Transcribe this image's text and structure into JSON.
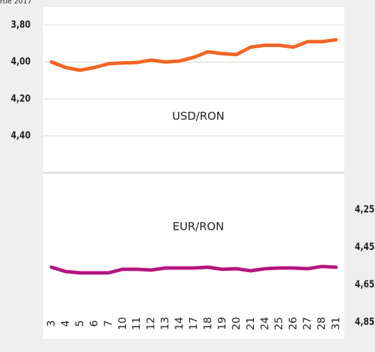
{
  "caption": "rtie 2017",
  "chart_data": [
    {
      "type": "line",
      "title": "USD/RON",
      "categories": [
        "3",
        "4",
        "5",
        "6",
        "7",
        "10",
        "11",
        "12",
        "13",
        "14",
        "17",
        "18",
        "19",
        "20",
        "21",
        "24",
        "25",
        "26",
        "27",
        "28",
        "31"
      ],
      "series": [
        {
          "name": "USD/RON",
          "color": "#f26522",
          "values": [
            4.0,
            4.03,
            4.045,
            4.03,
            4.01,
            4.005,
            4.003,
            3.99,
            4.0,
            3.995,
            3.975,
            3.945,
            3.955,
            3.96,
            3.92,
            3.91,
            3.91,
            3.92,
            3.89,
            3.89,
            3.88
          ]
        }
      ],
      "ylim": [
        3.8,
        4.6
      ],
      "inverted": true,
      "yticks": [
        {
          "value": 3.8,
          "label": "3,80"
        },
        {
          "value": 4.0,
          "label": "4,00"
        },
        {
          "value": 4.2,
          "label": "4,20"
        },
        {
          "value": 4.4,
          "label": "4,40"
        }
      ],
      "grid": true
    },
    {
      "type": "line",
      "title": "EUR/RON",
      "categories": [
        "3",
        "4",
        "5",
        "6",
        "7",
        "10",
        "11",
        "12",
        "13",
        "14",
        "17",
        "18",
        "19",
        "20",
        "21",
        "24",
        "25",
        "26",
        "27",
        "28",
        "31"
      ],
      "series": [
        {
          "name": "EUR/RON",
          "color": "#b5157e",
          "axis": "y2",
          "values": [
            4.557,
            4.58,
            4.587,
            4.587,
            4.587,
            4.568,
            4.568,
            4.572,
            4.561,
            4.561,
            4.561,
            4.557,
            4.568,
            4.565,
            4.576,
            4.565,
            4.561,
            4.561,
            4.565,
            4.553,
            4.557
          ]
        }
      ],
      "y2lim": [
        4.25,
        4.85
      ],
      "inverted": true,
      "y2ticks": [
        {
          "value": 4.25,
          "label": "4,25"
        },
        {
          "value": 4.45,
          "label": "4,45"
        },
        {
          "value": 4.65,
          "label": "4,65"
        },
        {
          "value": 4.85,
          "label": "4,85"
        }
      ]
    }
  ]
}
